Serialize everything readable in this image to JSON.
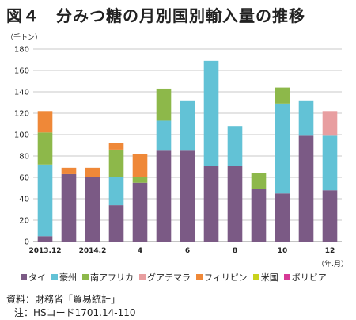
{
  "title": "図４　分みつ糖の月別国別輸入量の推移",
  "source_line": "資料：財務省「貿易統計」",
  "note_line": "注：HSコード1701.14-110",
  "chart_data": {
    "type": "bar",
    "stacked": true,
    "ylabel": "（千トン）",
    "xlabel": "（年.月）",
    "ylim": [
      0,
      180
    ],
    "yticks": [
      0,
      20,
      40,
      60,
      80,
      100,
      120,
      140,
      160,
      180
    ],
    "grid": "horizontal",
    "legend_position": "bottom",
    "categories": [
      "2013.12",
      "1",
      "2014.2",
      "3",
      "4",
      "5",
      "6",
      "7",
      "8",
      "9",
      "10",
      "11",
      "12"
    ],
    "category_labels": [
      "2013.12",
      "",
      "2014.2",
      "",
      "4",
      "",
      "6",
      "",
      "8",
      "",
      "10",
      "",
      "12"
    ],
    "series": [
      {
        "name": "タイ",
        "color": "#7b5a85",
        "values": [
          5,
          63,
          60,
          34,
          55,
          85,
          85,
          71,
          71,
          49,
          45,
          99,
          48
        ]
      },
      {
        "name": "豪州",
        "color": "#62c2d6",
        "values": [
          67,
          0,
          0,
          26,
          0,
          28,
          47,
          98,
          37,
          0,
          84,
          33,
          51
        ]
      },
      {
        "name": "南アフリカ",
        "color": "#8db84a",
        "values": [
          30,
          0,
          0,
          26,
          5,
          30,
          0,
          0,
          0,
          15,
          15,
          0,
          0
        ]
      },
      {
        "name": "グアテマラ",
        "color": "#e89ea0",
        "values": [
          0,
          0,
          0,
          0,
          0,
          0,
          0,
          0,
          0,
          0,
          0,
          0,
          23
        ]
      },
      {
        "name": "フィリピン",
        "color": "#ef8838",
        "values": [
          20,
          6,
          9,
          6,
          22,
          0,
          0,
          0,
          0,
          0,
          0,
          0,
          0
        ]
      },
      {
        "name": "米国",
        "color": "#c9d21b",
        "values": [
          0,
          0,
          0,
          0,
          0,
          0,
          0,
          0,
          0,
          0,
          0,
          0,
          0
        ]
      },
      {
        "name": "ボリビア",
        "color": "#d63a96",
        "values": [
          0,
          0,
          0,
          0,
          0,
          0,
          0,
          0,
          0,
          0,
          0,
          0,
          0
        ]
      }
    ]
  }
}
